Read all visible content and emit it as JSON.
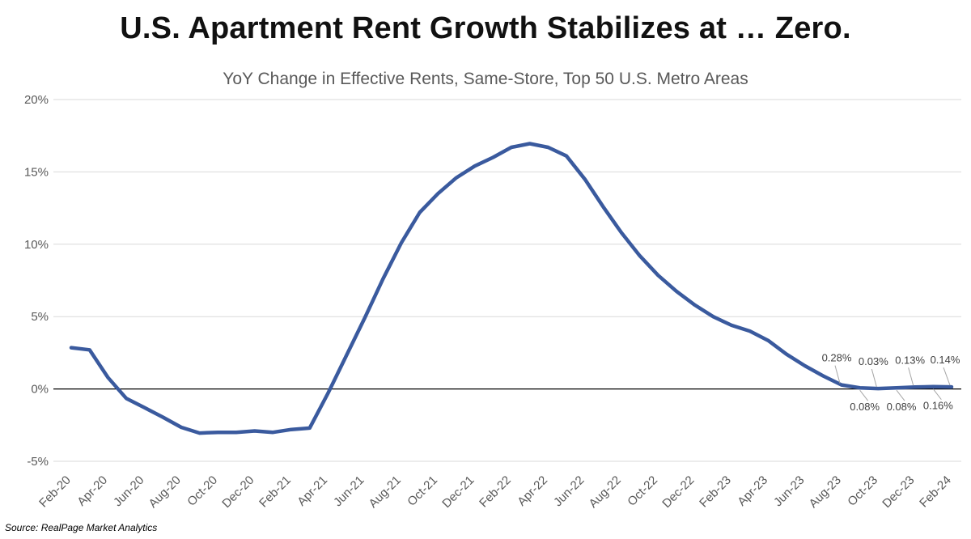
{
  "header": {
    "title": "U.S. Apartment Rent Growth Stabilizes at … Zero.",
    "subtitle": "YoY Change in Effective Rents, Same-Store, Top 50 U.S. Metro Areas"
  },
  "footer": {
    "source": "Source: RealPage Market Analytics"
  },
  "colors": {
    "line": "#3A5A9E",
    "grid": "#D9D9D9",
    "zero_axis": "#000000",
    "text": "#595959"
  },
  "chart_data": {
    "type": "line",
    "title": "U.S. Apartment Rent Growth Stabilizes at … Zero.",
    "subtitle": "YoY Change in Effective Rents, Same-Store, Top 50 U.S. Metro Areas",
    "xlabel": "",
    "ylabel": "",
    "ylim": [
      -5,
      20
    ],
    "yticks": [
      "-5%",
      "0%",
      "5%",
      "10%",
      "15%",
      "20%"
    ],
    "grid": true,
    "legend": "none",
    "x": [
      "Feb-20",
      "Mar-20",
      "Apr-20",
      "May-20",
      "Jun-20",
      "Jul-20",
      "Aug-20",
      "Sep-20",
      "Oct-20",
      "Nov-20",
      "Dec-20",
      "Jan-21",
      "Feb-21",
      "Mar-21",
      "Apr-21",
      "May-21",
      "Jun-21",
      "Jul-21",
      "Aug-21",
      "Sep-21",
      "Oct-21",
      "Nov-21",
      "Dec-21",
      "Jan-22",
      "Feb-22",
      "Mar-22",
      "Apr-22",
      "May-22",
      "Jun-22",
      "Jul-22",
      "Aug-22",
      "Sep-22",
      "Oct-22",
      "Nov-22",
      "Dec-22",
      "Jan-23",
      "Feb-23",
      "Mar-23",
      "Apr-23",
      "May-23",
      "Jun-23",
      "Jul-23",
      "Aug-23",
      "Sep-23",
      "Oct-23",
      "Nov-23",
      "Dec-23",
      "Jan-24",
      "Feb-24"
    ],
    "x_tick_labels": [
      "Feb-20",
      "Apr-20",
      "Jun-20",
      "Aug-20",
      "Oct-20",
      "Dec-20",
      "Feb-21",
      "Apr-21",
      "Jun-21",
      "Aug-21",
      "Oct-21",
      "Dec-21",
      "Feb-22",
      "Apr-22",
      "Jun-22",
      "Aug-22",
      "Oct-22",
      "Dec-22",
      "Feb-23",
      "Apr-23",
      "Jun-23",
      "Aug-23",
      "Oct-23",
      "Dec-23",
      "Feb-24"
    ],
    "series": [
      {
        "values": [
          2.85,
          2.7,
          0.8,
          -0.65,
          -1.3,
          -1.95,
          -2.65,
          -3.05,
          -3.0,
          -3.0,
          -2.9,
          -3.0,
          -2.8,
          -2.7,
          -0.3,
          2.3,
          4.9,
          7.6,
          10.1,
          12.2,
          13.5,
          14.6,
          15.4,
          16.0,
          16.7,
          16.95,
          16.7,
          16.1,
          14.5,
          12.6,
          10.8,
          9.2,
          7.85,
          6.75,
          5.8,
          5.0,
          4.4,
          4.0,
          3.35,
          2.4,
          1.6,
          0.9,
          0.28,
          0.08,
          0.03,
          0.08,
          0.13,
          0.16,
          0.14
        ]
      }
    ],
    "data_labels": [
      {
        "x": "Aug-23",
        "text": "0.28%",
        "position": "above"
      },
      {
        "x": "Sep-23",
        "text": "0.08%",
        "position": "below"
      },
      {
        "x": "Oct-23",
        "text": "0.03%",
        "position": "above"
      },
      {
        "x": "Nov-23",
        "text": "0.08%",
        "position": "below"
      },
      {
        "x": "Dec-23",
        "text": "0.13%",
        "position": "above"
      },
      {
        "x": "Jan-24",
        "text": "0.16%",
        "position": "below"
      },
      {
        "x": "Feb-24",
        "text": "0.14%",
        "position": "above"
      }
    ]
  }
}
